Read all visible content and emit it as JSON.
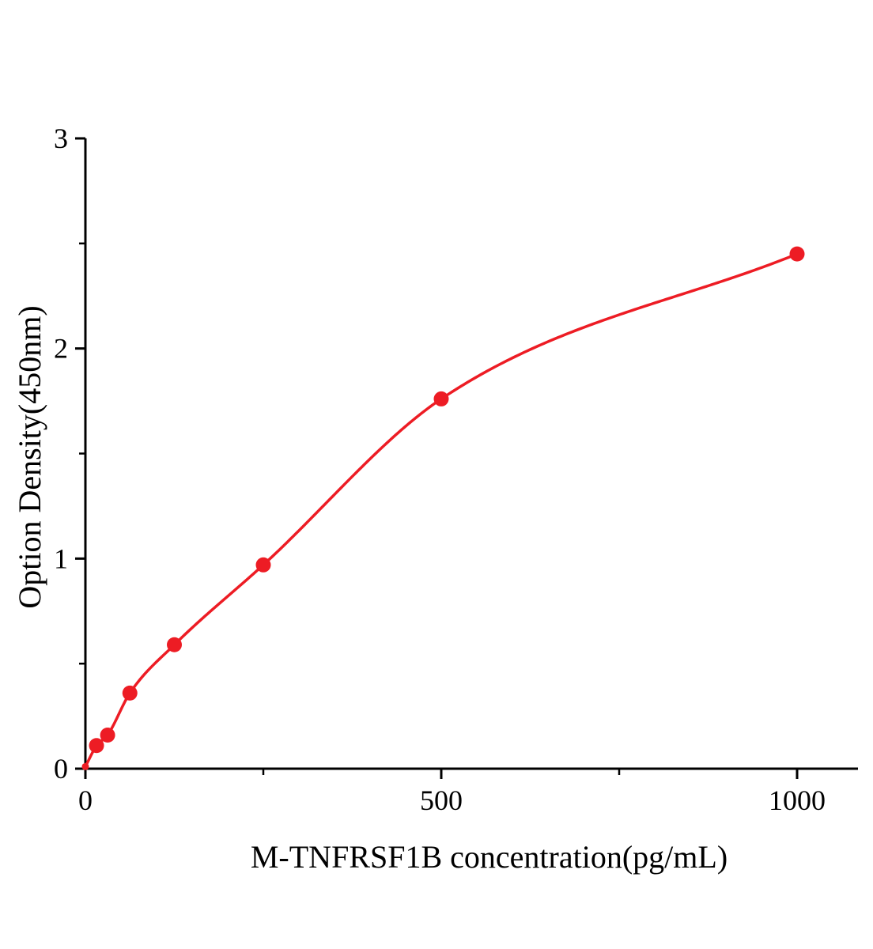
{
  "chart_data": {
    "type": "scatter",
    "title": "",
    "xlabel": "M-TNFRSF1B concentration(pg/mL)",
    "ylabel": "Option Density(450nm)",
    "x": [
      0,
      15.6,
      31.2,
      62.5,
      125,
      250,
      500,
      1000
    ],
    "y": [
      0.01,
      0.11,
      0.16,
      0.36,
      0.59,
      0.97,
      1.76,
      2.45
    ],
    "xlim": [
      0,
      1086
    ],
    "ylim": [
      0,
      3
    ],
    "x_major_ticks": [
      0,
      500,
      1000
    ],
    "x_minor_ticks": [
      250,
      750
    ],
    "y_major_ticks": [
      0,
      1,
      2,
      3
    ],
    "y_minor_ticks": [
      0.5,
      1.5,
      2.5
    ],
    "point_color": "#ed1c24",
    "line_color": "#ed1c24",
    "axis_color": "#000000",
    "grid": false,
    "legend": false,
    "curve": "smooth saturating fit through data points"
  }
}
